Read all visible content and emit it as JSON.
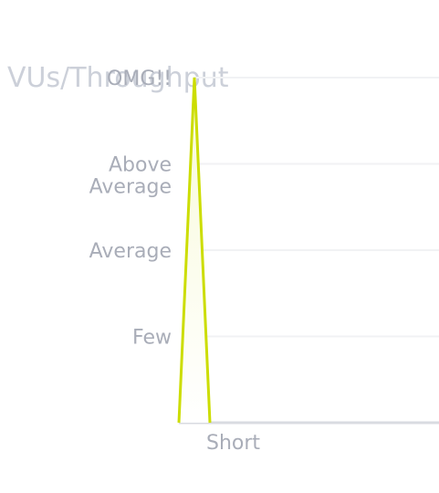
{
  "chart_data": {
    "type": "area",
    "title": "VUs/Throughput",
    "xlabel": "",
    "ylabel": "",
    "x_categories": [
      "Short"
    ],
    "y_categories": [
      "Few",
      "Average",
      "Above Average",
      "OMG!!"
    ],
    "ylim": [
      0,
      4
    ],
    "grid": true,
    "legend": "none",
    "series": [
      {
        "points": [
          {
            "x": 0.0,
            "y": 0
          },
          {
            "x": 0.5,
            "y": 4
          },
          {
            "x": 1.0,
            "y": 0
          }
        ],
        "color": "#ccdd00",
        "fill": "#f8fad8"
      }
    ]
  },
  "colors": {
    "title": "#ccd0d9",
    "tick_label": "#a9adb8",
    "grid": "#f1f2f4",
    "axis": "#d9dbe1"
  }
}
